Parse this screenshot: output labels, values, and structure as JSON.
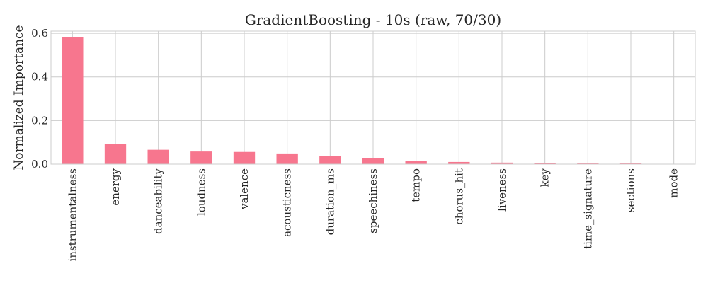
{
  "chart_data": {
    "type": "bar",
    "title": "GradientBoosting - 10s (raw, 70/30)",
    "xlabel": "",
    "ylabel": "Normalized Importance",
    "categories": [
      "instrumentalness",
      "energy",
      "danceability",
      "loudness",
      "valence",
      "acousticness",
      "duration_ms",
      "speechiness",
      "tempo",
      "chorus_hit",
      "liveness",
      "key",
      "time_signature",
      "sections",
      "mode"
    ],
    "values": [
      0.581,
      0.091,
      0.066,
      0.058,
      0.056,
      0.049,
      0.037,
      0.027,
      0.013,
      0.01,
      0.007,
      0.004,
      0.003,
      0.003,
      0.0005
    ],
    "ylim": [
      0,
      0.61
    ],
    "yticks": [
      "0.0",
      "0.2",
      "0.4",
      "0.6"
    ],
    "ytick_values": [
      0.0,
      0.2,
      0.4,
      0.6
    ],
    "grid": true,
    "bar_color": "#f7768e"
  }
}
